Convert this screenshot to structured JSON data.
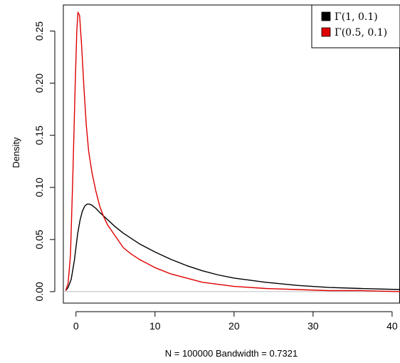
{
  "chart_data": {
    "type": "line",
    "title": "",
    "xlabel": "N = 100000   Bandwidth = 0.7321",
    "ylabel": "Density",
    "xlim": [
      -1.6,
      41
    ],
    "ylim": [
      -0.011,
      0.275
    ],
    "x_ticks": [
      0,
      10,
      20,
      30,
      40
    ],
    "x_tick_labels": [
      "0",
      "10",
      "20",
      "30",
      "40"
    ],
    "y_ticks": [
      0.0,
      0.05,
      0.1,
      0.15,
      0.2,
      0.25
    ],
    "y_tick_labels": [
      "0.00",
      "0.05",
      "0.10",
      "0.15",
      "0.20",
      "0.25"
    ],
    "baseline": 0,
    "grid": false,
    "legend_position": "top-right",
    "series": [
      {
        "name": "Γ(1, 0.1)",
        "color": "#000000",
        "x": [
          -1.3,
          -1.0,
          -0.6,
          -0.2,
          0.2,
          0.5,
          0.8,
          1.1,
          1.4,
          1.7,
          2.0,
          2.5,
          3.0,
          4.0,
          5.0,
          6.0,
          8.0,
          10.0,
          12.0,
          14.0,
          16.0,
          18.0,
          20.0,
          24.0,
          28.0,
          32.0,
          36.0,
          41.0
        ],
        "values": [
          0.001,
          0.004,
          0.012,
          0.03,
          0.055,
          0.068,
          0.077,
          0.082,
          0.084,
          0.084,
          0.083,
          0.08,
          0.076,
          0.069,
          0.062,
          0.056,
          0.046,
          0.038,
          0.031,
          0.025,
          0.02,
          0.016,
          0.013,
          0.009,
          0.006,
          0.004,
          0.003,
          0.002
        ]
      },
      {
        "name": "Γ(0.5, 0.1)",
        "color": "#df0000",
        "x": [
          -1.3,
          -1.0,
          -0.7,
          -0.4,
          -0.1,
          0.1,
          0.25,
          0.45,
          0.7,
          1.0,
          1.3,
          1.6,
          2.0,
          2.5,
          3.0,
          3.5,
          4.0,
          5.0,
          6.0,
          7.0,
          8.0,
          10.0,
          12.0,
          14.0,
          16.0,
          18.0,
          20.0,
          24.0,
          28.0,
          32.0,
          36.0,
          41.0
        ],
        "values": [
          0.001,
          0.008,
          0.035,
          0.11,
          0.2,
          0.25,
          0.268,
          0.265,
          0.238,
          0.196,
          0.16,
          0.135,
          0.115,
          0.097,
          0.082,
          0.072,
          0.064,
          0.053,
          0.042,
          0.036,
          0.031,
          0.023,
          0.017,
          0.013,
          0.009,
          0.007,
          0.005,
          0.003,
          0.002,
          0.001,
          0.001,
          0.0
        ]
      }
    ]
  }
}
